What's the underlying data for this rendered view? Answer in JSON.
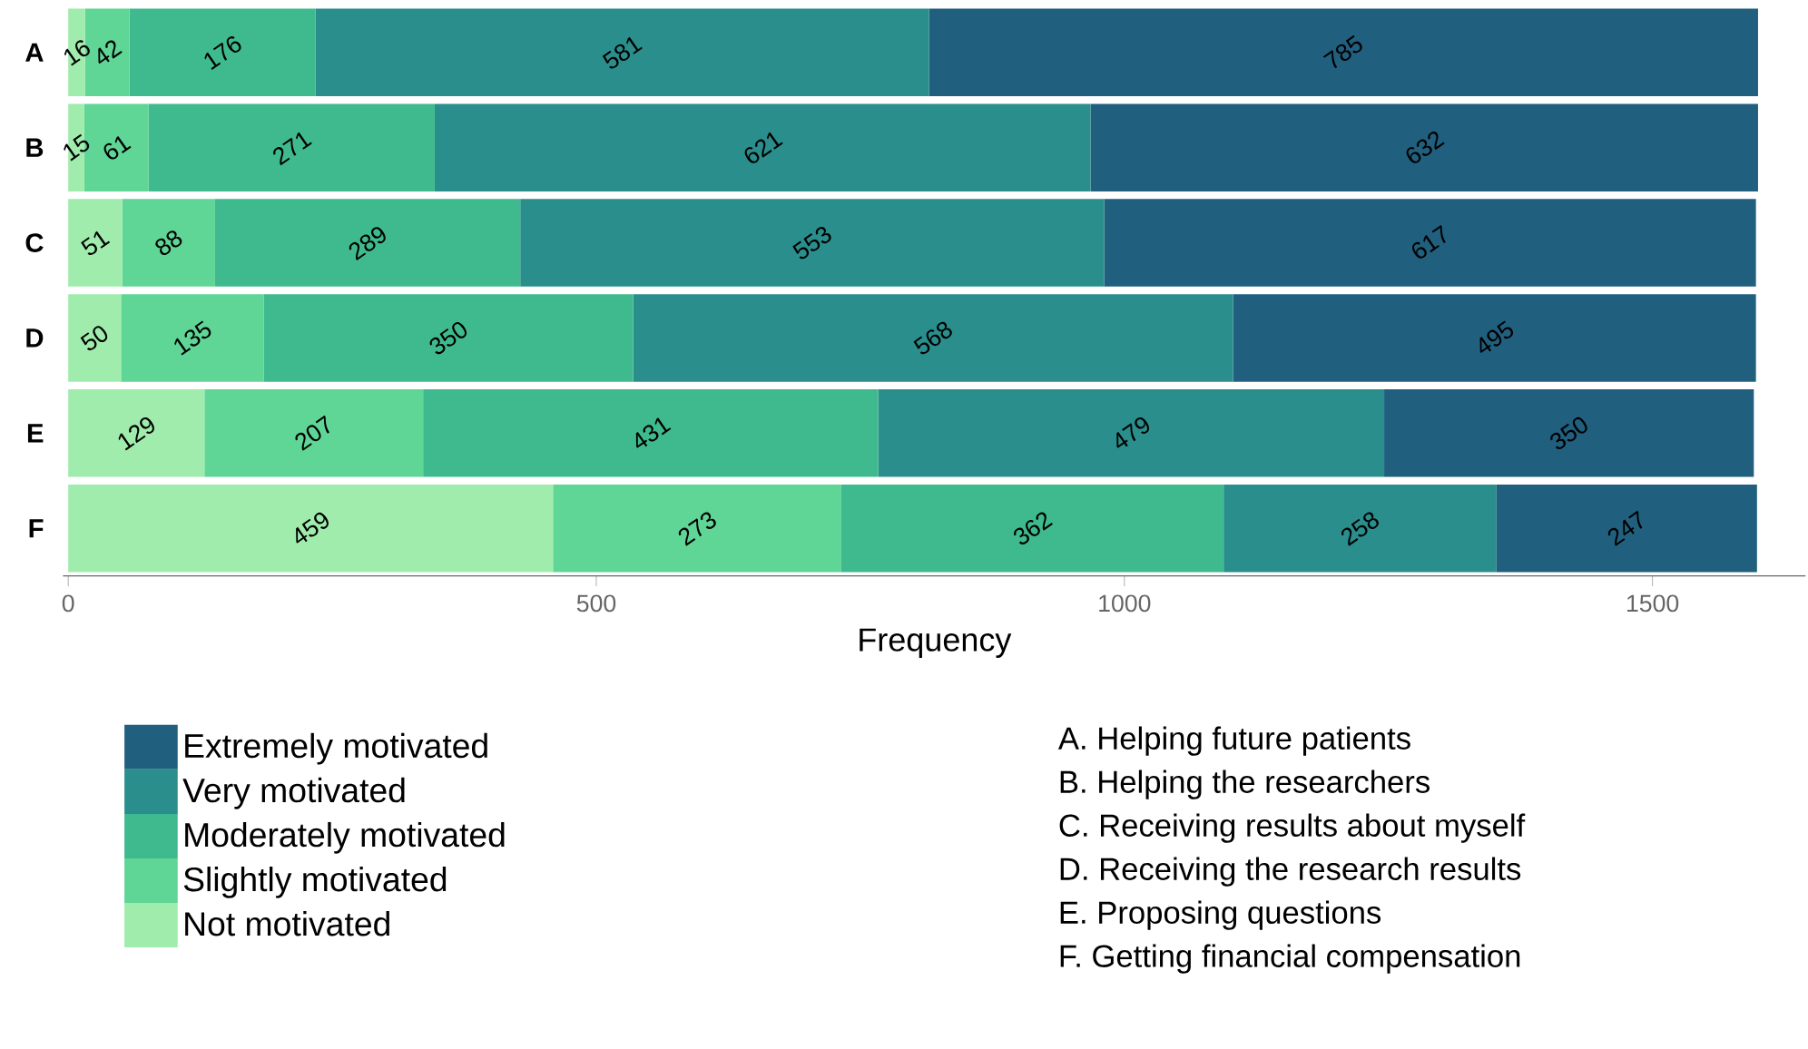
{
  "chart_data": {
    "type": "bar",
    "orientation": "horizontal",
    "stacked": true,
    "data_labels": true,
    "xlabel": "Frequency",
    "categories": [
      "A",
      "B",
      "C",
      "D",
      "E",
      "F"
    ],
    "xlim": [
      -5,
      1645
    ],
    "xticks": [
      0,
      500,
      1000,
      1500
    ],
    "grid": false,
    "legend": "bottom left",
    "series": [
      {
        "name": "Not motivated",
        "color": "#a0ecac",
        "values": [
          16,
          15,
          51,
          50,
          129,
          459
        ]
      },
      {
        "name": "Slightly motivated",
        "color": "#5fd596",
        "values": [
          42,
          61,
          88,
          135,
          207,
          273
        ]
      },
      {
        "name": "Moderately motivated",
        "color": "#3fba8e",
        "values": [
          176,
          271,
          289,
          350,
          431,
          362
        ]
      },
      {
        "name": "Very motivated",
        "color": "#2a8e8c",
        "values": [
          581,
          621,
          553,
          568,
          479,
          258
        ]
      },
      {
        "name": "Extremely motivated",
        "color": "#215f7e",
        "values": [
          785,
          632,
          617,
          495,
          350,
          247
        ]
      }
    ],
    "annotations": [
      "A. Helping future patients",
      "B. Helping the researchers",
      "C. Receiving results about myself",
      "D. Receiving the research results",
      "E. Proposing questions",
      "F. Getting financial compensation"
    ]
  }
}
